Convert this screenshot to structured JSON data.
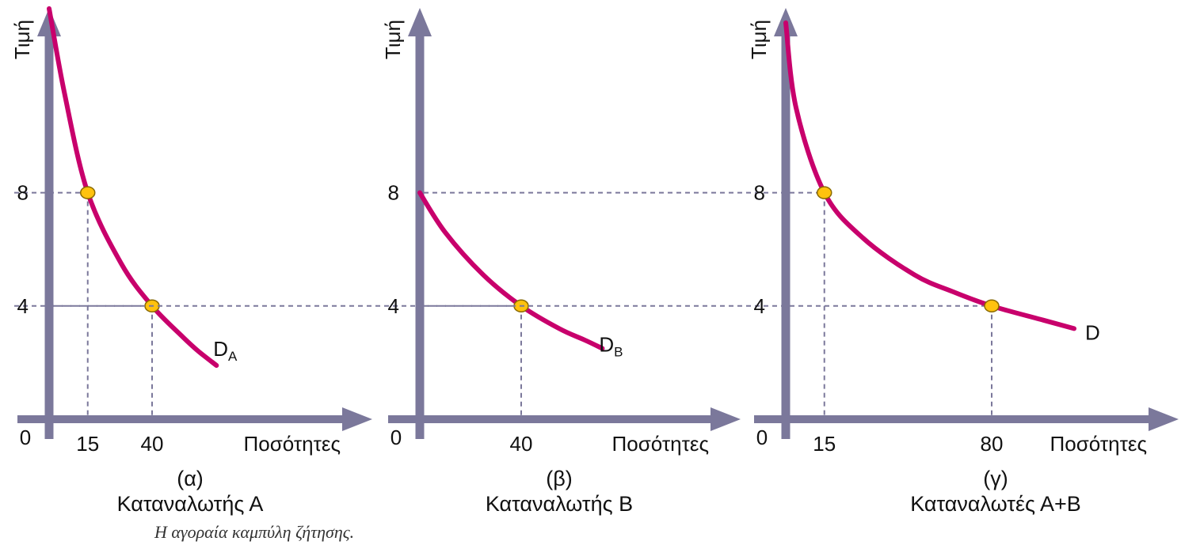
{
  "figure_caption": "Η αγοραία καμπύλη ζήτησης.",
  "colors": {
    "axis": "#7b789b",
    "curve": "#c8006c",
    "point_fill": "#ffc20e",
    "point_stroke": "#8a6a00",
    "guide": "#7b789b"
  },
  "chart_data": [
    {
      "type": "line",
      "panel_label": "(α)",
      "subtitle": "Καταναλωτής Α",
      "ylabel": "Τιμή",
      "xlabel": "Ποσότητες",
      "origin_label": "0",
      "x_ticks": [
        "15",
        "40"
      ],
      "y_ticks": [
        "8",
        "4"
      ],
      "series": [
        {
          "name_main": "D",
          "name_sub": "A",
          "x": [
            0,
            6,
            15,
            28,
            40,
            52,
            58,
            65
          ],
          "y": [
            14.5,
            11.5,
            8,
            5.5,
            4,
            2.9,
            2.4,
            1.9
          ]
        }
      ],
      "points": [
        {
          "x": 15,
          "y": 8
        },
        {
          "x": 40,
          "y": 4
        }
      ]
    },
    {
      "type": "line",
      "panel_label": "(β)",
      "subtitle": "Καταναλωτής Β",
      "ylabel": "Τιμή",
      "xlabel": "Ποσότητες",
      "origin_label": "0",
      "x_ticks": [
        "40"
      ],
      "y_ticks": [
        "8",
        "4"
      ],
      "series": [
        {
          "name_main": "D",
          "name_sub": "B",
          "x": [
            0,
            10,
            25,
            40,
            55,
            65,
            72
          ],
          "y": [
            8,
            6.6,
            5.1,
            4,
            3.2,
            2.8,
            2.5
          ]
        }
      ],
      "points": [
        {
          "x": 40,
          "y": 4
        }
      ]
    },
    {
      "type": "line",
      "panel_label": "(γ)",
      "subtitle": "Καταναλωτές Α+Β",
      "ylabel": "Τιμή",
      "xlabel": "Ποσότητες",
      "origin_label": "0",
      "x_ticks": [
        "15",
        "80"
      ],
      "y_ticks": [
        "8",
        "4"
      ],
      "series": [
        {
          "name_main": "D",
          "name_sub": "",
          "x": [
            0,
            4,
            15,
            30,
            50,
            65,
            80,
            100,
            112
          ],
          "y": [
            14,
            11,
            8,
            6.4,
            5.1,
            4.5,
            4,
            3.5,
            3.2
          ]
        }
      ],
      "points": [
        {
          "x": 15,
          "y": 8
        },
        {
          "x": 80,
          "y": 4
        }
      ]
    }
  ]
}
